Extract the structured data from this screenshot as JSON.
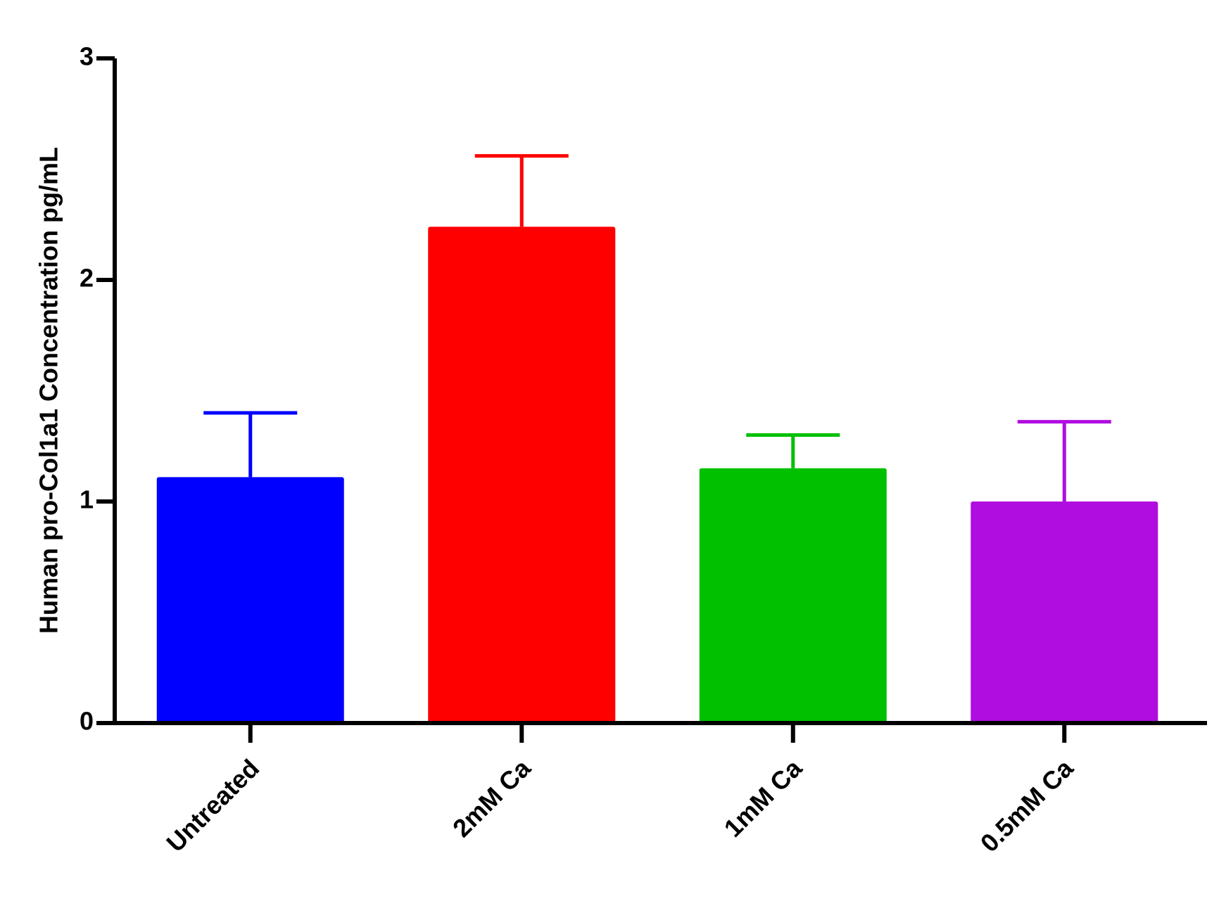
{
  "chart_data": {
    "type": "bar",
    "ylabel": "Human pro-Col1a1 Concentration pg/mL",
    "categories": [
      "Untreated",
      "2mM Ca",
      "1mM Ca",
      "0.5mM Ca"
    ],
    "values": [
      1.11,
      2.24,
      1.15,
      1.0
    ],
    "errors": [
      0.29,
      0.32,
      0.15,
      0.36
    ],
    "colors": [
      "#0000ff",
      "#ff0000",
      "#00c000",
      "#b00de0"
    ],
    "ylim": [
      0,
      3
    ],
    "yticks": [
      0,
      1,
      2,
      3
    ],
    "grid": false
  }
}
